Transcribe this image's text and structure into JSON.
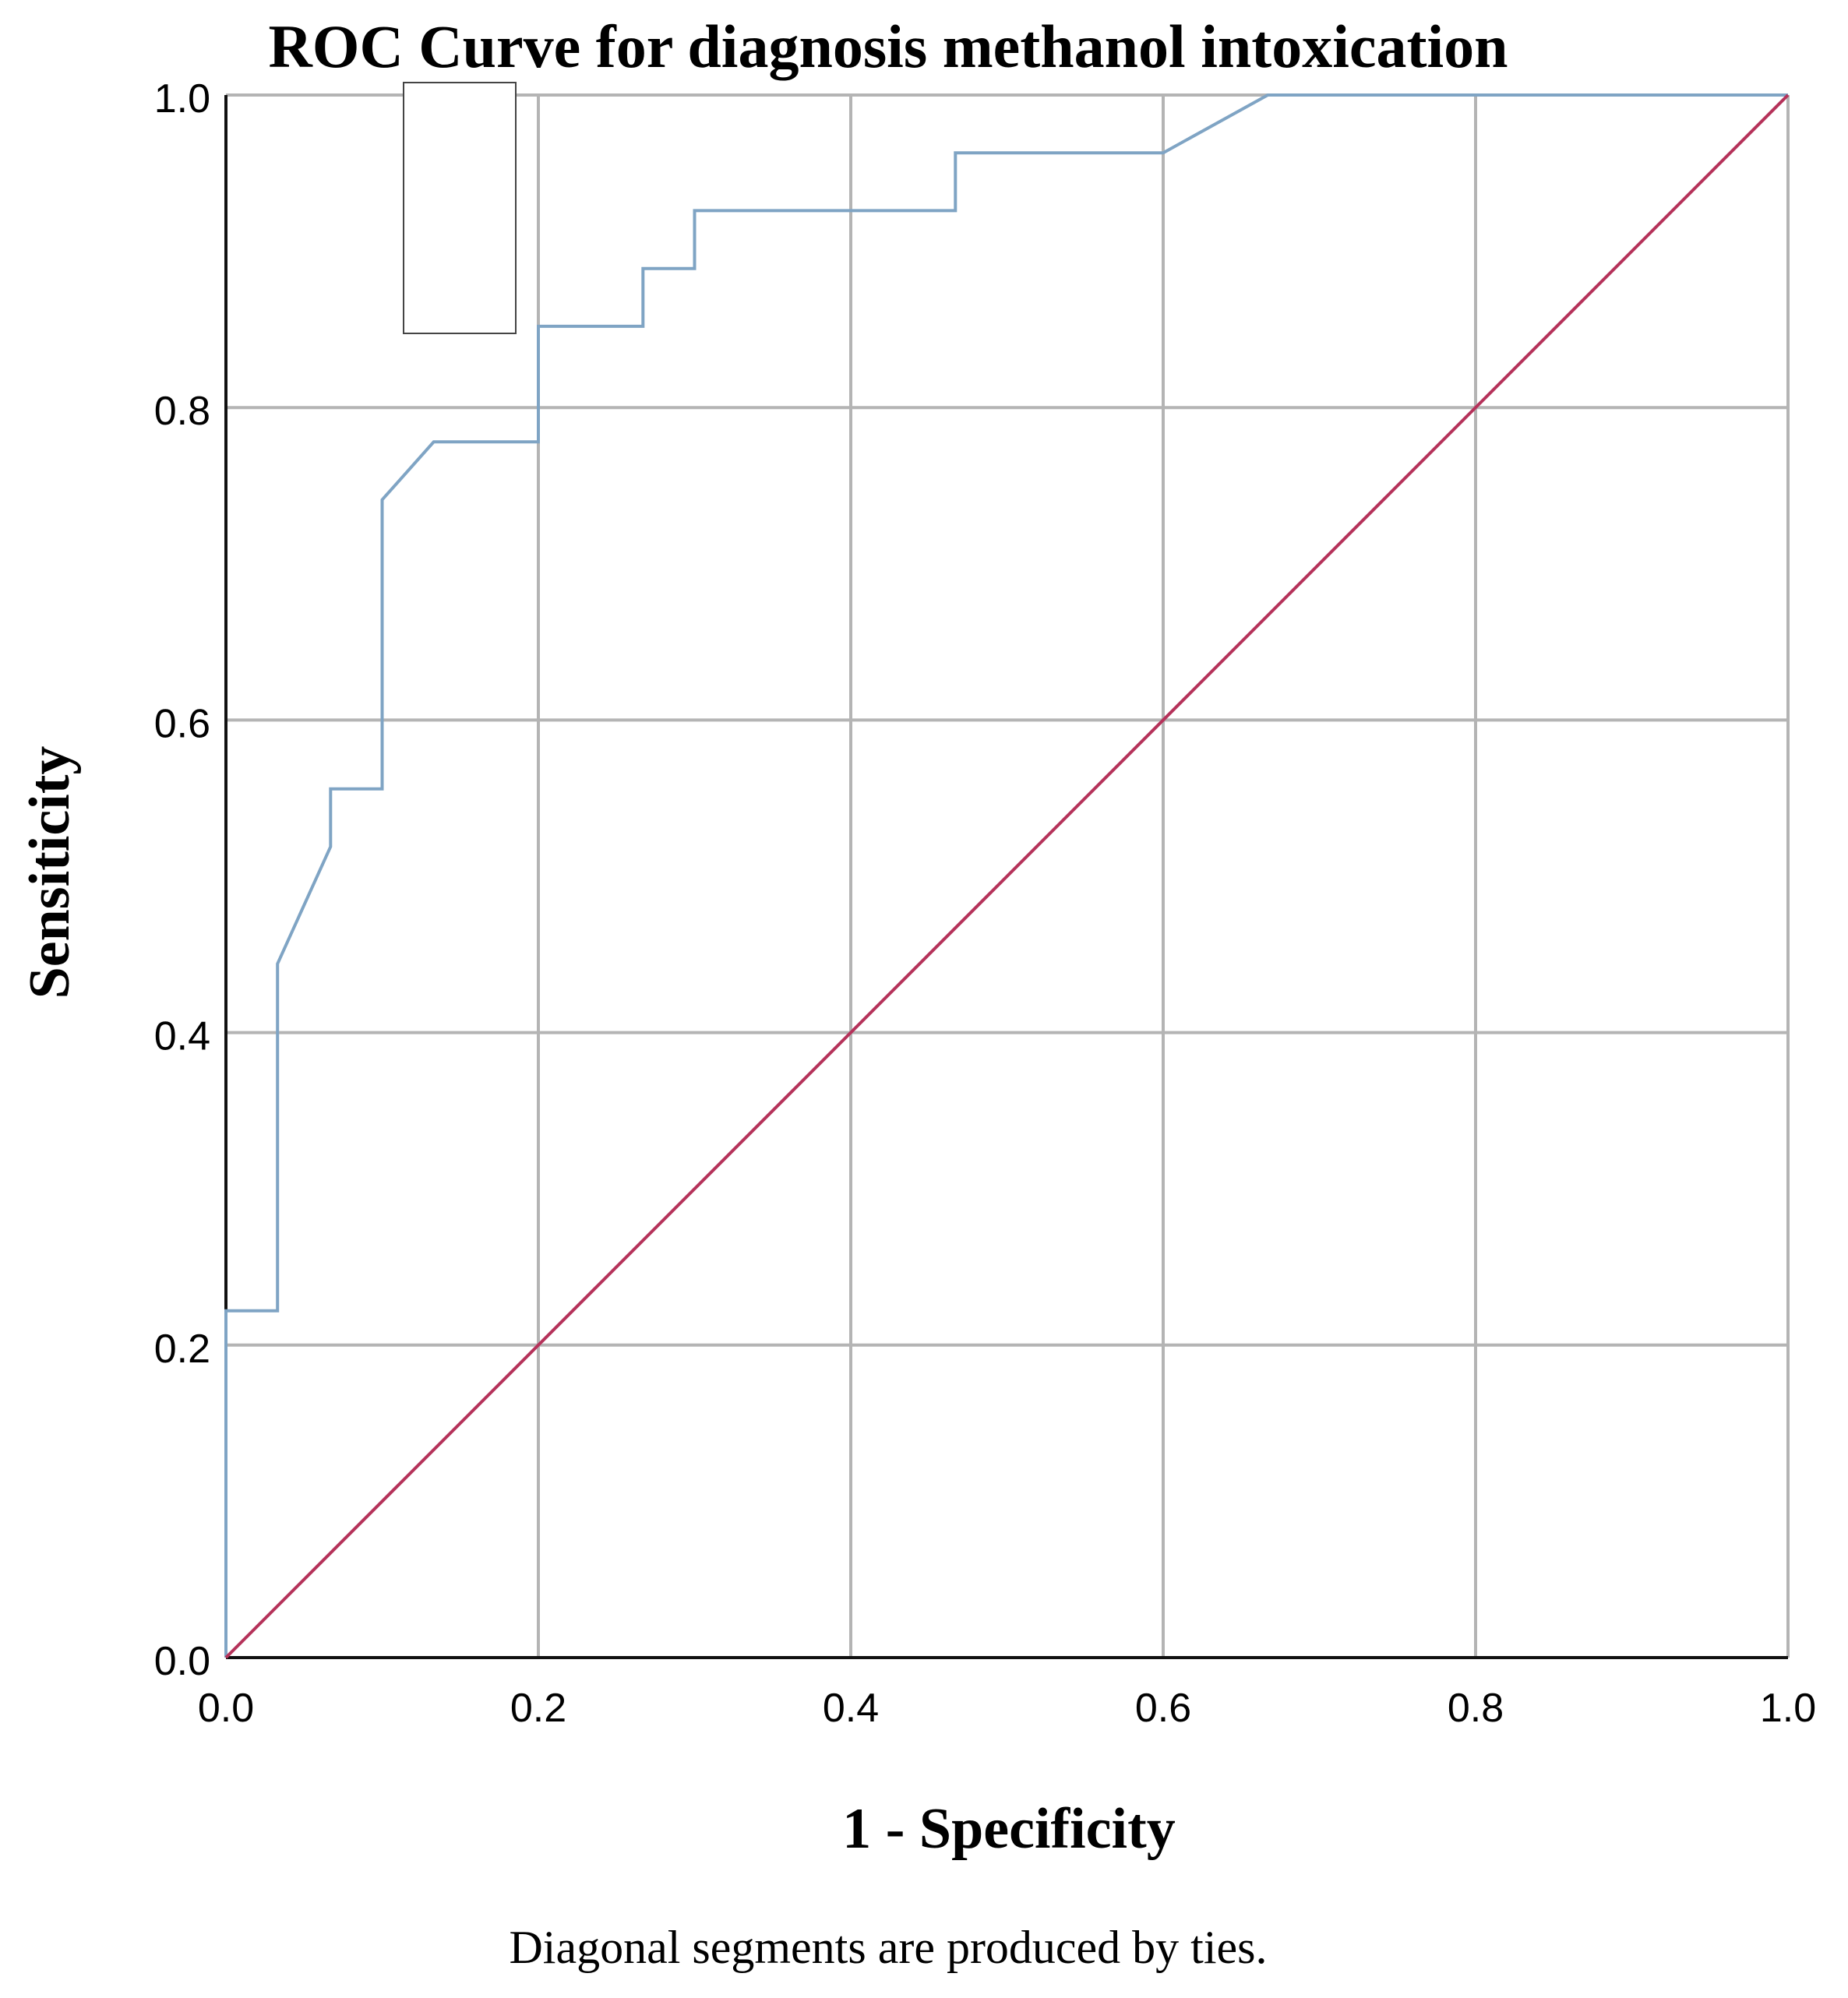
{
  "chart_data": {
    "type": "line",
    "title": "ROC Curve for diagnosis methanol intoxication",
    "xlabel": "1 - Specificity",
    "ylabel": "Sensiticity",
    "footnote": "Diagonal segments are produced by ties.",
    "xlim": [
      0,
      1
    ],
    "ylim": [
      0,
      1
    ],
    "x_ticks": [
      "0.0",
      "0.2",
      "0.4",
      "0.6",
      "0.8",
      "1.0"
    ],
    "y_ticks": [
      "0.0",
      "0.2",
      "0.4",
      "0.6",
      "0.8",
      "1.0"
    ],
    "grid": true,
    "legend": "top-left",
    "series": [
      {
        "color": "#7fa4c4",
        "x": [
          0,
          0,
          0.033,
          0.033,
          0.067,
          0.067,
          0.1,
          0.1,
          0.133,
          0.2,
          0.2,
          0.267,
          0.267,
          0.3,
          0.3,
          0.467,
          0.467,
          0.6,
          0.667,
          1.0
        ],
        "y": [
          0,
          0.222,
          0.222,
          0.444,
          0.519,
          0.556,
          0.556,
          0.741,
          0.778,
          0.778,
          0.852,
          0.852,
          0.889,
          0.889,
          0.926,
          0.926,
          0.963,
          0.963,
          1.0,
          1.0
        ]
      },
      {
        "color": "#b5325a",
        "x": [
          0,
          1
        ],
        "y": [
          0,
          1
        ]
      }
    ]
  }
}
